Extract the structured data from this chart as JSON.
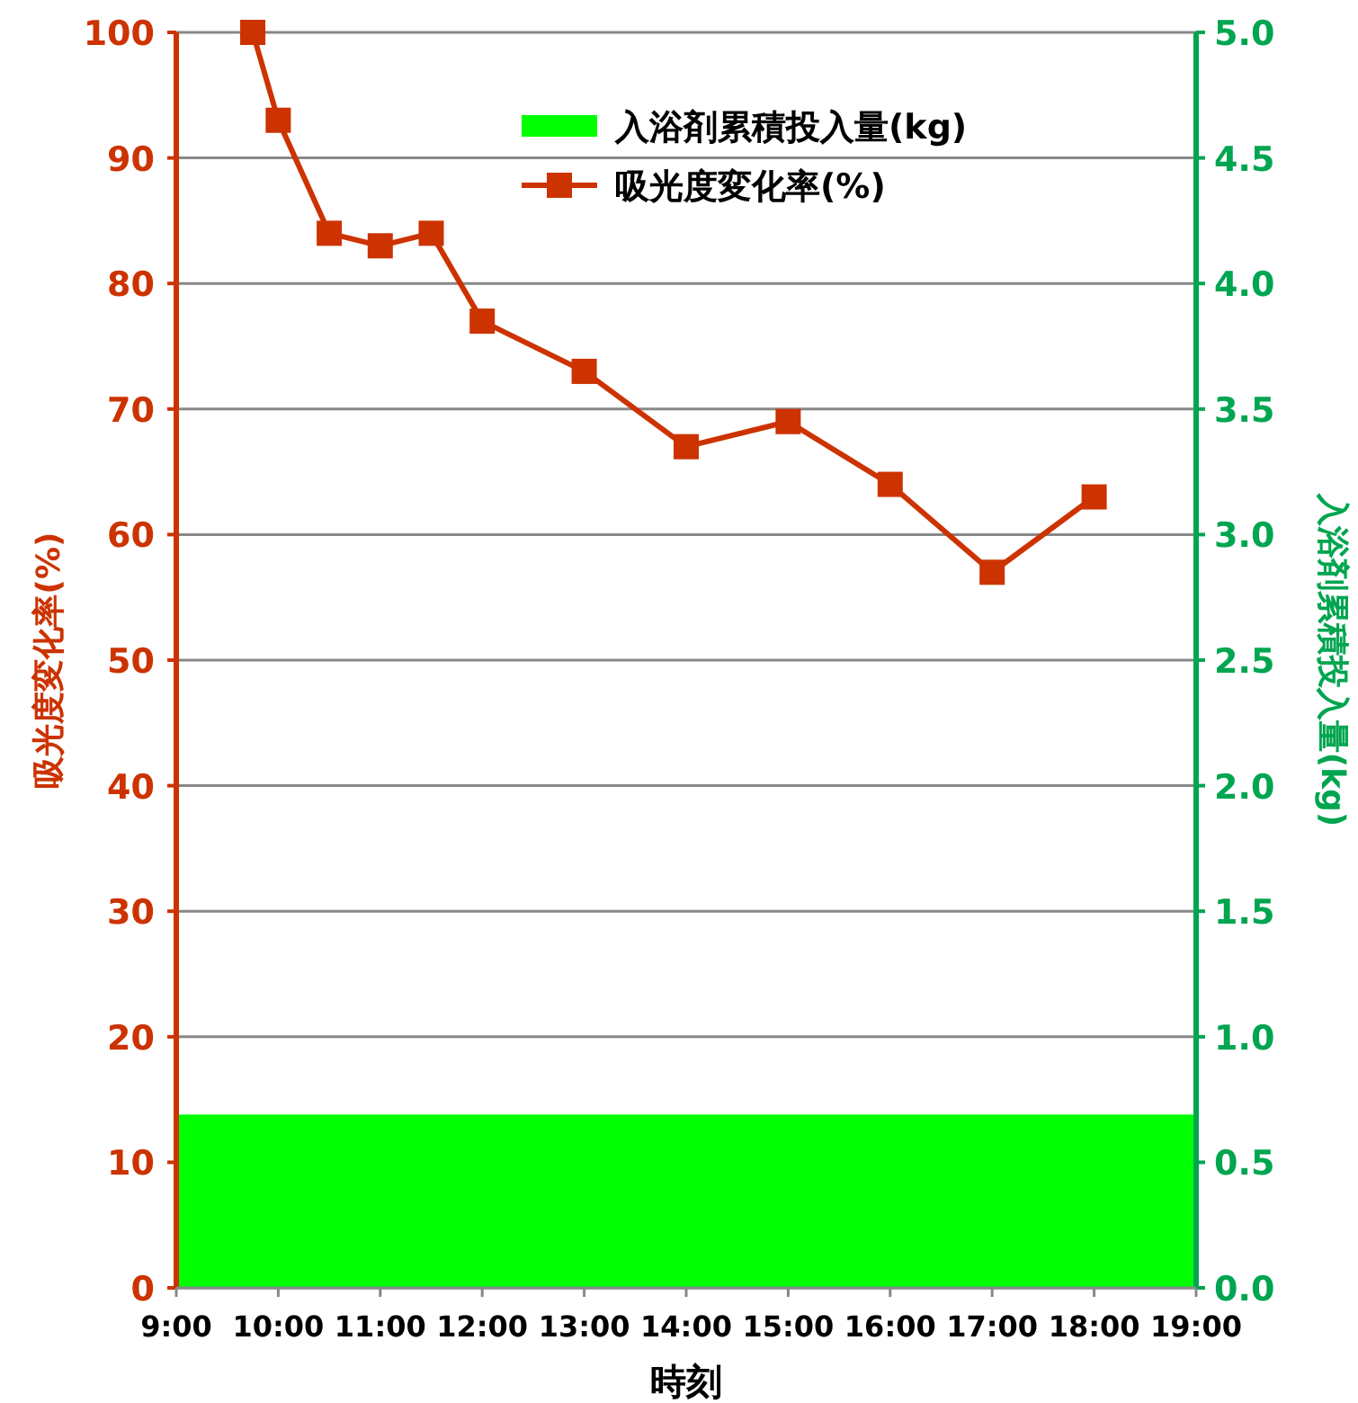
{
  "chart_data": {
    "type": "line",
    "xlabel": "時刻",
    "ylabel": "吸光度変化率(%)",
    "y2label": "入浴剤累積投入量(kg)",
    "series": [
      {
        "name": "入浴剤累積投入量(kg)",
        "type": "area",
        "axis": "y2",
        "color": "#00ff00",
        "x": [
          9,
          19
        ],
        "values": [
          0.69,
          0.69
        ]
      },
      {
        "name": "吸光度変化率(%)",
        "type": "line",
        "color": "#cc3300",
        "marker": "square",
        "x": [
          9.75,
          10,
          10.5,
          11,
          11.5,
          12,
          13,
          14,
          15,
          16,
          17,
          18
        ],
        "values": [
          100,
          93,
          84,
          83,
          84,
          77,
          73,
          67,
          69,
          64,
          57,
          63
        ]
      }
    ],
    "xlim": [
      9,
      19
    ],
    "xticks": [
      {
        "value": 9,
        "label": "9:00"
      },
      {
        "value": 10,
        "label": "10:00"
      },
      {
        "value": 11,
        "label": "11:00"
      },
      {
        "value": 12,
        "label": "12:00"
      },
      {
        "value": 13,
        "label": "13:00"
      },
      {
        "value": 14,
        "label": "14:00"
      },
      {
        "value": 15,
        "label": "15:00"
      },
      {
        "value": 16,
        "label": "16:00"
      },
      {
        "value": 17,
        "label": "17:00"
      },
      {
        "value": 18,
        "label": "18:00"
      },
      {
        "value": 19,
        "label": "19:00"
      }
    ],
    "ylim": [
      0,
      100
    ],
    "yticks": [
      0,
      10,
      20,
      30,
      40,
      50,
      60,
      70,
      80,
      90,
      100
    ],
    "y2lim": [
      0,
      5
    ],
    "y2ticks": [
      {
        "value": 0,
        "label": "0.0"
      },
      {
        "value": 0.5,
        "label": "0.5"
      },
      {
        "value": 1,
        "label": "1.0"
      },
      {
        "value": 1.5,
        "label": "1.5"
      },
      {
        "value": 2,
        "label": "2.0"
      },
      {
        "value": 2.5,
        "label": "2.5"
      },
      {
        "value": 3,
        "label": "3.0"
      },
      {
        "value": 3.5,
        "label": "3.5"
      },
      {
        "value": 4,
        "label": "4.0"
      },
      {
        "value": 4.5,
        "label": "4.5"
      },
      {
        "value": 5,
        "label": "5.0"
      }
    ],
    "grid": "y",
    "legend": "top right"
  }
}
